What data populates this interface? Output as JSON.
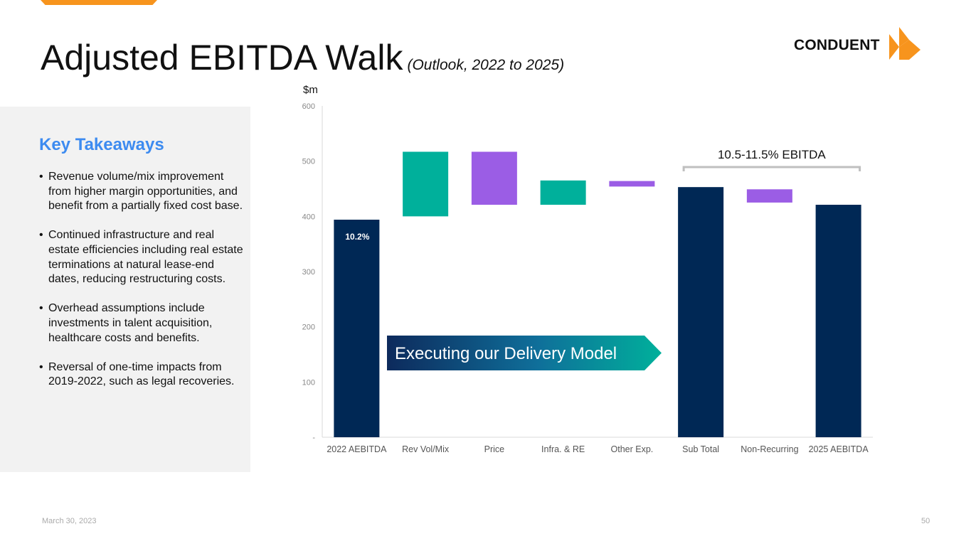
{
  "header": {
    "title": "Adjusted EBITDA Walk",
    "subtitle": "(Outlook, 2022 to 2025)",
    "logo_text": "CONDUENT",
    "accent_color": "#f7941d"
  },
  "takeaways": {
    "heading": "Key Takeaways",
    "bullets": [
      "Revenue volume/mix improvement from higher margin opportunities, and benefit from a partially fixed cost base.",
      "Continued infrastructure and real estate efficiencies including real estate terminations at natural lease-end dates, reducing restructuring costs.",
      "Overhead assumptions include investments in talent acquisition, healthcare costs and benefits.",
      "Reversal of one-time impacts from 2019-2022, such as legal recoveries."
    ]
  },
  "banner": {
    "text": "Executing our Delivery Model"
  },
  "footer": {
    "date": "March 30, 2023",
    "page": "50"
  },
  "chart_data": {
    "type": "bar",
    "subtype": "waterfall",
    "title": "Adjusted EBITDA Walk",
    "ylabel": "$m",
    "xlabel": "",
    "ylim": [
      0,
      600
    ],
    "yticks": [
      0,
      100,
      200,
      300,
      400,
      500,
      600
    ],
    "ytick_labels": [
      "-",
      "100",
      "200",
      "300",
      "400",
      "500",
      "600"
    ],
    "categories": [
      "2022 AEBITDA",
      "Rev Vol/Mix",
      "Price",
      "Infra. & RE",
      "Other Exp.",
      "Sub Total",
      "Non-Recurring",
      "2025 AEBITDA"
    ],
    "bars": [
      {
        "category": "2022 AEBITDA",
        "kind": "total",
        "bottom": 0,
        "top": 394,
        "color": "#002855",
        "label": "10.2%"
      },
      {
        "category": "Rev Vol/Mix",
        "kind": "increase",
        "bottom": 400,
        "top": 517,
        "color": "#00b09b"
      },
      {
        "category": "Price",
        "kind": "decrease",
        "bottom": 421,
        "top": 517,
        "color": "#9b5de5"
      },
      {
        "category": "Infra. & RE",
        "kind": "increase",
        "bottom": 421,
        "top": 465,
        "color": "#00b09b"
      },
      {
        "category": "Other Exp.",
        "kind": "decrease",
        "bottom": 454,
        "top": 464,
        "color": "#9b5de5"
      },
      {
        "category": "Sub Total",
        "kind": "total",
        "bottom": 0,
        "top": 453,
        "color": "#002855"
      },
      {
        "category": "Non-Recurring",
        "kind": "decrease",
        "bottom": 425,
        "top": 449,
        "color": "#9b5de5"
      },
      {
        "category": "2025 AEBITDA",
        "kind": "total",
        "bottom": 0,
        "top": 421,
        "color": "#002855"
      }
    ],
    "annotation": {
      "text": "10.5-11.5% EBITDA",
      "from": "Sub Total",
      "to": "2025 AEBITDA"
    },
    "grid": false
  }
}
